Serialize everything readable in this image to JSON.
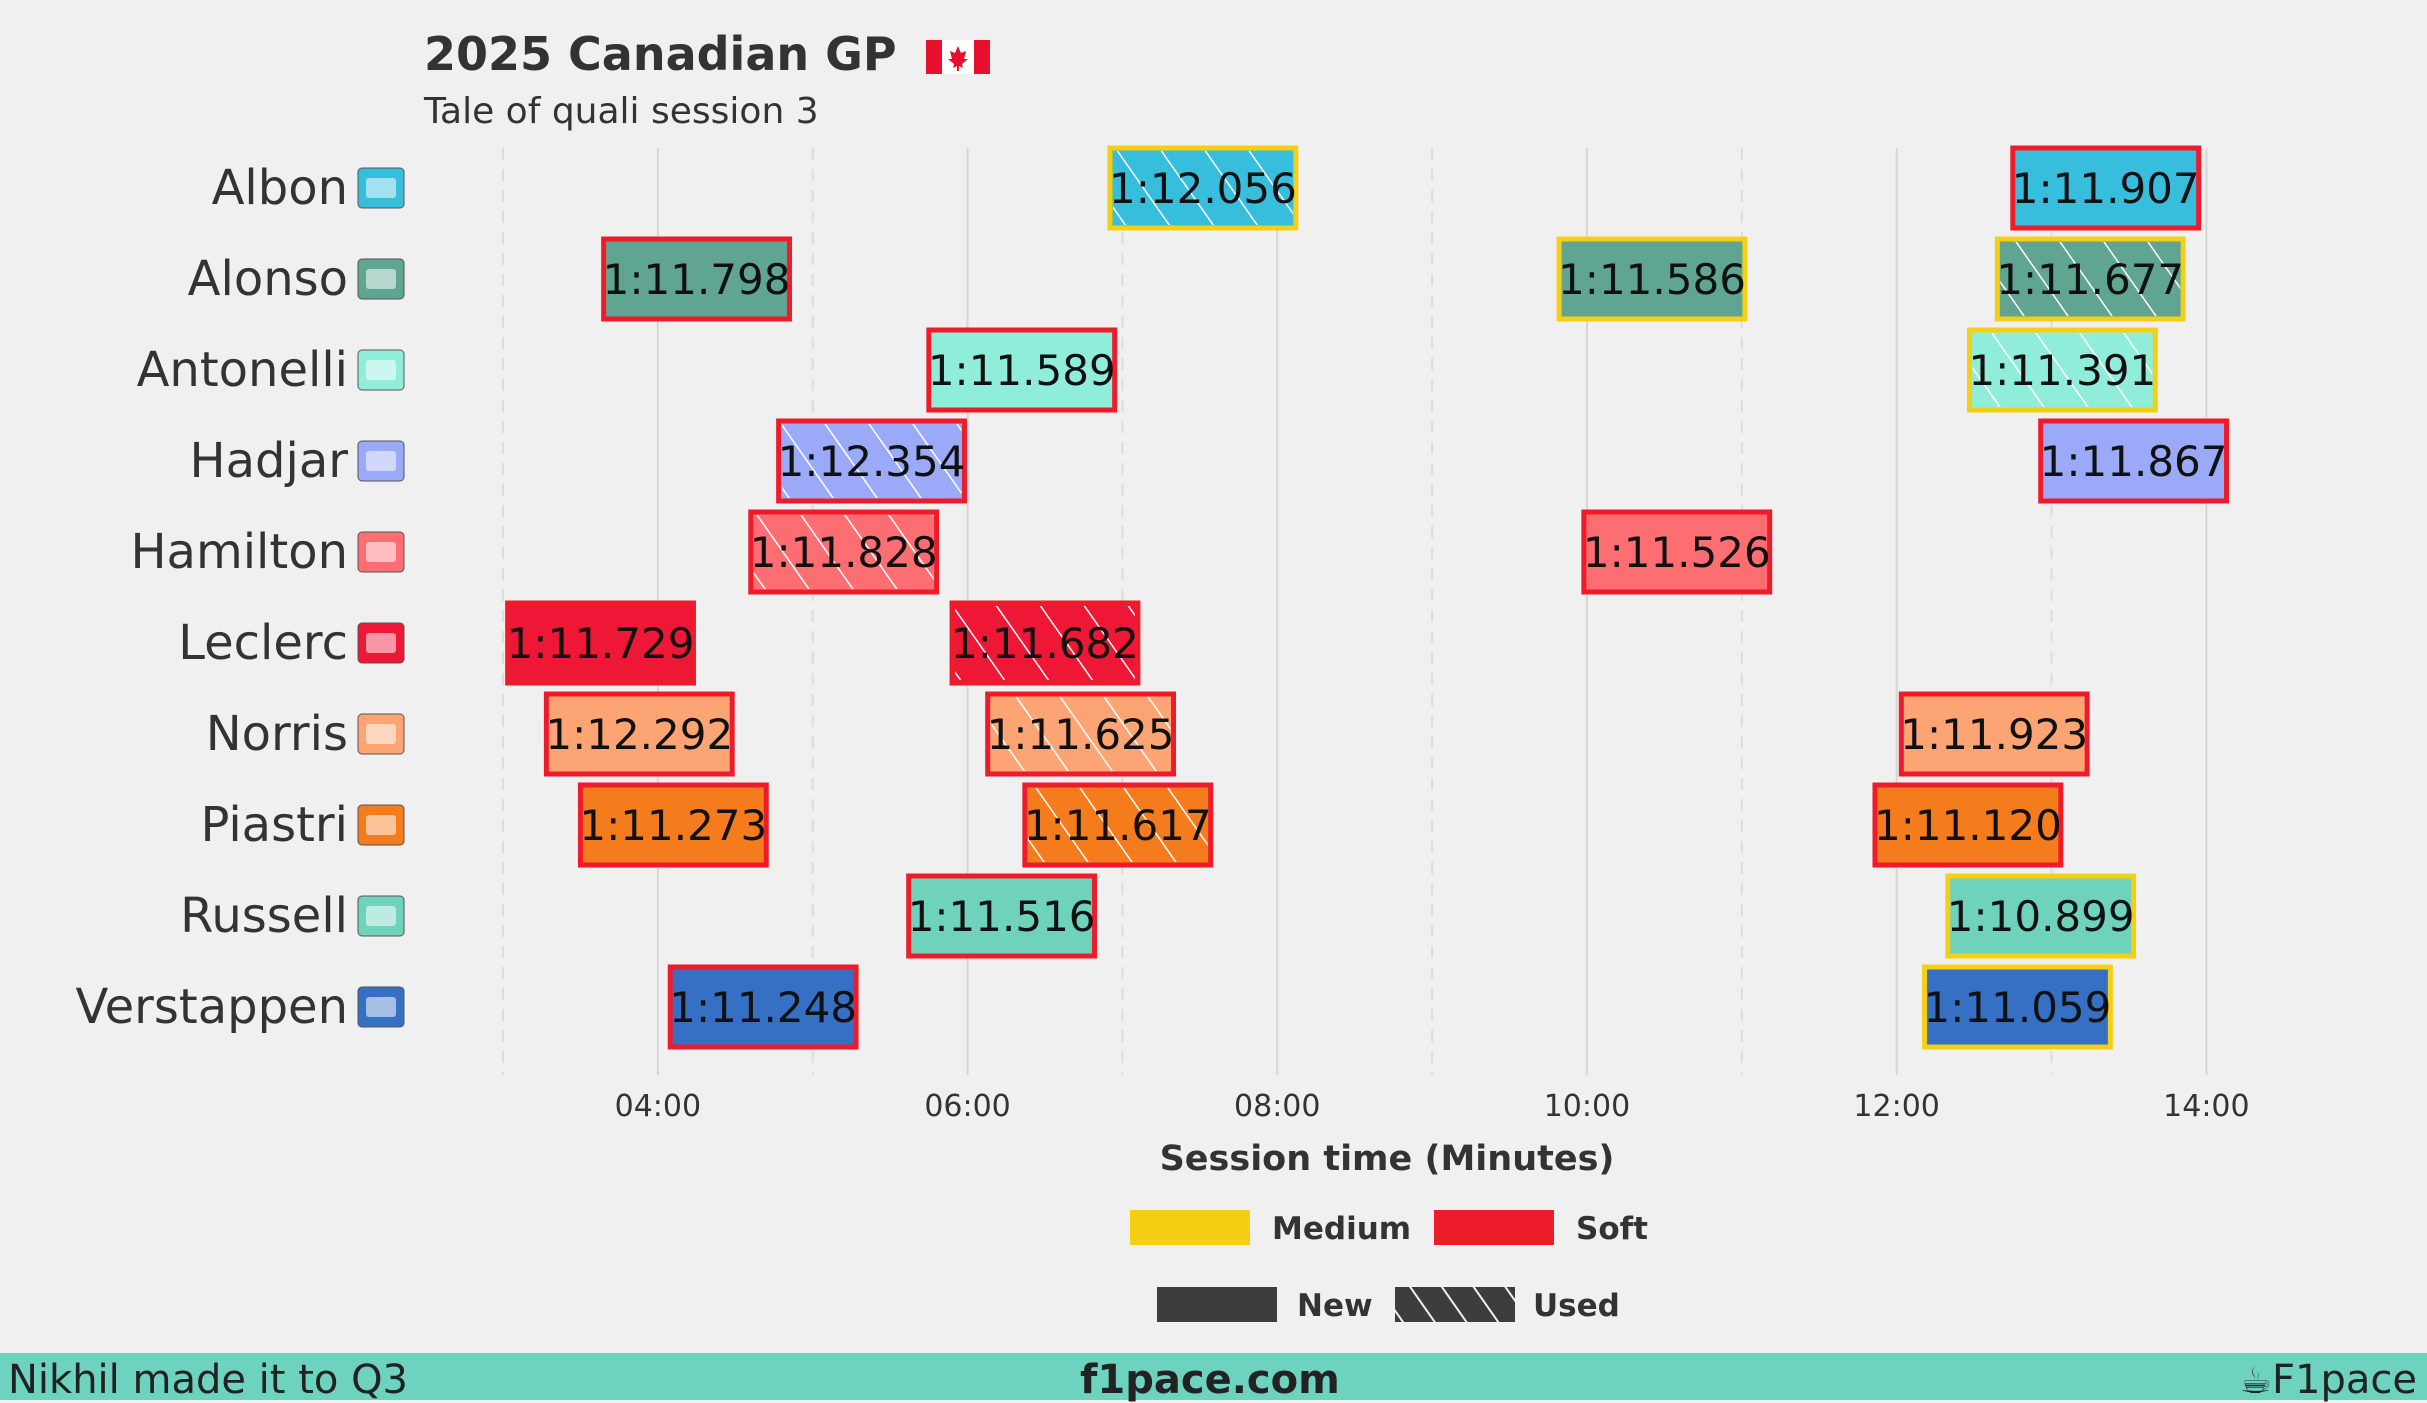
{
  "chart_data": {
    "type": "gantt",
    "title": "2025 Canadian GP",
    "subtitle": "Tale of quali session 3",
    "xlabel": "Session time (Minutes)",
    "x_ticks": [
      "04:00",
      "06:00",
      "08:00",
      "10:00",
      "12:00",
      "14:00"
    ],
    "xlim_minutes": [
      3.0,
      14.85
    ],
    "legend_compound": [
      {
        "label": "Medium",
        "color": "#f5cf14"
      },
      {
        "label": "Soft",
        "color": "#ee1c2a"
      }
    ],
    "legend_tyre": [
      {
        "label": "New"
      },
      {
        "label": "Used"
      }
    ],
    "drivers": [
      {
        "name": "Albon",
        "team_color": "#37bedd",
        "laps": [
          {
            "start": 6.92,
            "end": 8.12,
            "time": "1:12.056",
            "compound": "Medium",
            "used": true
          },
          {
            "start": 12.75,
            "end": 13.95,
            "time": "1:11.907",
            "compound": "Soft",
            "used": false
          }
        ]
      },
      {
        "name": "Alonso",
        "team_color": "#5fa591",
        "laps": [
          {
            "start": 3.65,
            "end": 4.85,
            "time": "1:11.798",
            "compound": "Soft",
            "used": false
          },
          {
            "start": 9.82,
            "end": 11.02,
            "time": "1:11.586",
            "compound": "Medium",
            "used": false
          },
          {
            "start": 12.65,
            "end": 13.85,
            "time": "1:11.677",
            "compound": "Medium",
            "used": true
          }
        ]
      },
      {
        "name": "Antonelli",
        "team_color": "#8fedd9",
        "laps": [
          {
            "start": 5.75,
            "end": 6.95,
            "time": "1:11.589",
            "compound": "Soft",
            "used": false
          },
          {
            "start": 12.47,
            "end": 13.67,
            "time": "1:11.391",
            "compound": "Medium",
            "used": true
          }
        ]
      },
      {
        "name": "Hadjar",
        "team_color": "#9aa9f8",
        "laps": [
          {
            "start": 4.78,
            "end": 5.98,
            "time": "1:12.354",
            "compound": "Soft",
            "used": true
          },
          {
            "start": 12.93,
            "end": 14.13,
            "time": "1:11.867",
            "compound": "Soft",
            "used": false
          }
        ]
      },
      {
        "name": "Hamilton",
        "team_color": "#fd6e73",
        "laps": [
          {
            "start": 4.6,
            "end": 5.8,
            "time": "1:11.828",
            "compound": "Soft",
            "used": true
          },
          {
            "start": 9.98,
            "end": 11.18,
            "time": "1:11.526",
            "compound": "Soft",
            "used": false
          }
        ]
      },
      {
        "name": "Leclerc",
        "team_color": "#ee1836",
        "laps": [
          {
            "start": 3.03,
            "end": 4.23,
            "time": "1:11.729",
            "compound": "Soft",
            "used": false
          },
          {
            "start": 5.9,
            "end": 7.1,
            "time": "1:11.682",
            "compound": "Soft",
            "used": true
          }
        ]
      },
      {
        "name": "Norris",
        "team_color": "#fca474",
        "laps": [
          {
            "start": 3.28,
            "end": 4.48,
            "time": "1:12.292",
            "compound": "Soft",
            "used": false
          },
          {
            "start": 6.13,
            "end": 7.33,
            "time": "1:11.625",
            "compound": "Soft",
            "used": true
          },
          {
            "start": 12.03,
            "end": 13.23,
            "time": "1:11.923",
            "compound": "Soft",
            "used": false
          }
        ]
      },
      {
        "name": "Piastri",
        "team_color": "#f57c1c",
        "laps": [
          {
            "start": 3.5,
            "end": 4.7,
            "time": "1:11.273",
            "compound": "Soft",
            "used": false
          },
          {
            "start": 6.37,
            "end": 7.57,
            "time": "1:11.617",
            "compound": "Soft",
            "used": true
          },
          {
            "start": 11.86,
            "end": 13.06,
            "time": "1:11.120",
            "compound": "Soft",
            "used": false
          }
        ]
      },
      {
        "name": "Russell",
        "team_color": "#6fd3bc",
        "laps": [
          {
            "start": 5.62,
            "end": 6.82,
            "time": "1:11.516",
            "compound": "Soft",
            "used": false
          },
          {
            "start": 12.33,
            "end": 13.53,
            "time": "1:10.899",
            "compound": "Medium",
            "used": false
          }
        ]
      },
      {
        "name": "Verstappen",
        "team_color": "#3570c4",
        "laps": [
          {
            "start": 4.08,
            "end": 5.28,
            "time": "1:11.248",
            "compound": "Soft",
            "used": false
          },
          {
            "start": 12.18,
            "end": 13.38,
            "time": "1:11.059",
            "compound": "Medium",
            "used": false
          }
        ]
      }
    ]
  },
  "footer": {
    "left": "Nikhil made it to Q3",
    "center": "f1pace.com",
    "right": "F1pace"
  },
  "icons": {
    "flag": "canada-flag-icon",
    "teams": [
      "williams-logo-icon",
      "aston-martin-logo-icon",
      "mercedes-logo-icon",
      "racing-bulls-logo-icon",
      "ferrari-logo-icon",
      "ferrari-logo-icon",
      "mclaren-logo-icon",
      "mclaren-logo-icon",
      "mercedes-logo-icon",
      "red-bull-logo-icon"
    ],
    "brand": "coffee-cup-icon"
  }
}
